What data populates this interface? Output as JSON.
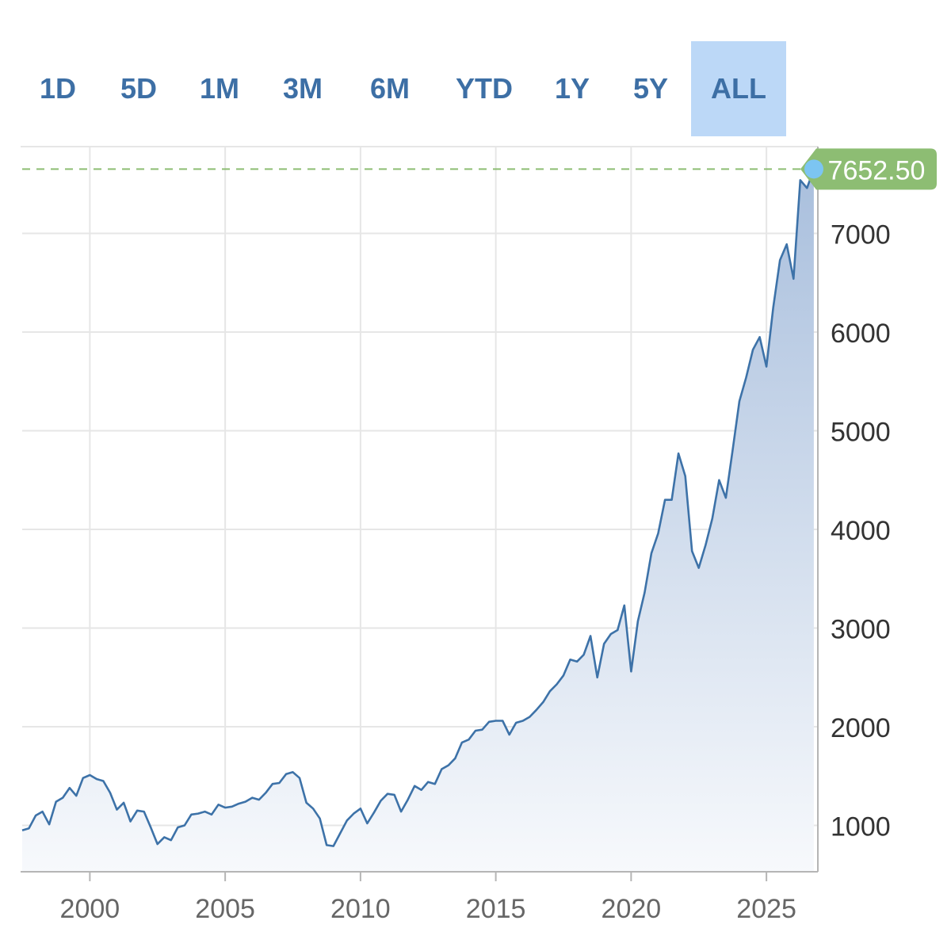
{
  "range_buttons": [
    {
      "label": "1D"
    },
    {
      "label": "5D"
    },
    {
      "label": "1M"
    },
    {
      "label": "3M"
    },
    {
      "label": "6M"
    },
    {
      "label": "YTD"
    },
    {
      "label": "1Y"
    },
    {
      "label": "5Y"
    },
    {
      "label": "ALL",
      "active": true
    }
  ],
  "colors": {
    "line": "#3d72a8",
    "area_top": "#a9bfdd",
    "area_bottom": "#f7f9fc",
    "grid": "#e6e6e6",
    "axis": "#b5b5b5",
    "last_price_badge": "#8dbd73",
    "last_price_dot": "#7cc5f2",
    "tab_active_bg": "#bcd8f7",
    "tab_text": "#3d6fa5"
  },
  "chart_data": {
    "type": "area",
    "xlim": [
      1997.5,
      2026.9
    ],
    "ylim": [
      530,
      7880
    ],
    "x_ticks": [
      2000,
      2005,
      2010,
      2015,
      2020,
      2025
    ],
    "y_ticks": [
      1000,
      2000,
      3000,
      4000,
      5000,
      6000,
      7000
    ],
    "y_axis_position": "right",
    "grid": true,
    "last_price_label": "7652.50",
    "last_price": 7652.5,
    "series": [
      {
        "x": [
          1997.5,
          1997.75,
          1998.0,
          1998.25,
          1998.5,
          1998.75,
          1999.0,
          1999.25,
          1999.5,
          1999.75,
          2000.0,
          2000.25,
          2000.5,
          2000.75,
          2001.0,
          2001.25,
          2001.5,
          2001.75,
          2002.0,
          2002.25,
          2002.5,
          2002.75,
          2003.0,
          2003.25,
          2003.5,
          2003.75,
          2004.0,
          2004.25,
          2004.5,
          2004.75,
          2005.0,
          2005.25,
          2005.5,
          2005.75,
          2006.0,
          2006.25,
          2006.5,
          2006.75,
          2007.0,
          2007.25,
          2007.5,
          2007.75,
          2008.0,
          2008.25,
          2008.5,
          2008.75,
          2009.0,
          2009.25,
          2009.5,
          2009.75,
          2010.0,
          2010.25,
          2010.5,
          2010.75,
          2011.0,
          2011.25,
          2011.5,
          2011.75,
          2012.0,
          2012.25,
          2012.5,
          2012.75,
          2013.0,
          2013.25,
          2013.5,
          2013.75,
          2014.0,
          2014.25,
          2014.5,
          2014.75,
          2015.0,
          2015.25,
          2015.5,
          2015.75,
          2016.0,
          2016.25,
          2016.5,
          2016.75,
          2017.0,
          2017.25,
          2017.5,
          2017.75,
          2018.0,
          2018.25,
          2018.5,
          2018.75,
          2019.0,
          2019.25,
          2019.5,
          2019.75,
          2020.0,
          2020.25,
          2020.5,
          2020.75,
          2021.0,
          2021.25,
          2021.5,
          2021.75,
          2022.0,
          2022.25,
          2022.5,
          2022.75,
          2023.0,
          2023.25,
          2023.5,
          2023.75,
          2024.0,
          2024.25,
          2024.5,
          2024.75,
          2025.0,
          2025.25,
          2025.5,
          2025.75,
          2026.0,
          2026.25,
          2026.5,
          2026.75
        ],
        "y": [
          950,
          970,
          1100,
          1140,
          1010,
          1240,
          1280,
          1380,
          1300,
          1480,
          1510,
          1470,
          1450,
          1330,
          1160,
          1230,
          1040,
          1150,
          1140,
          980,
          810,
          880,
          850,
          980,
          1000,
          1110,
          1120,
          1140,
          1110,
          1210,
          1180,
          1190,
          1220,
          1240,
          1280,
          1260,
          1330,
          1420,
          1430,
          1520,
          1540,
          1480,
          1230,
          1170,
          1070,
          800,
          790,
          920,
          1050,
          1120,
          1170,
          1020,
          1130,
          1250,
          1320,
          1310,
          1140,
          1260,
          1400,
          1360,
          1440,
          1420,
          1570,
          1610,
          1680,
          1840,
          1870,
          1960,
          1970,
          2050,
          2060,
          2060,
          1920,
          2040,
          2060,
          2100,
          2170,
          2250,
          2360,
          2430,
          2520,
          2680,
          2660,
          2730,
          2920,
          2500,
          2840,
          2940,
          2980,
          3230,
          2560,
          3070,
          3360,
          3760,
          3960,
          4300,
          4300,
          4770,
          4540,
          3780,
          3610,
          3840,
          4110,
          4500,
          4320,
          4800,
          5300,
          5540,
          5820,
          5950,
          5650,
          6250,
          6730,
          6890,
          6540,
          7540,
          7460,
          7652.5
        ]
      }
    ]
  }
}
